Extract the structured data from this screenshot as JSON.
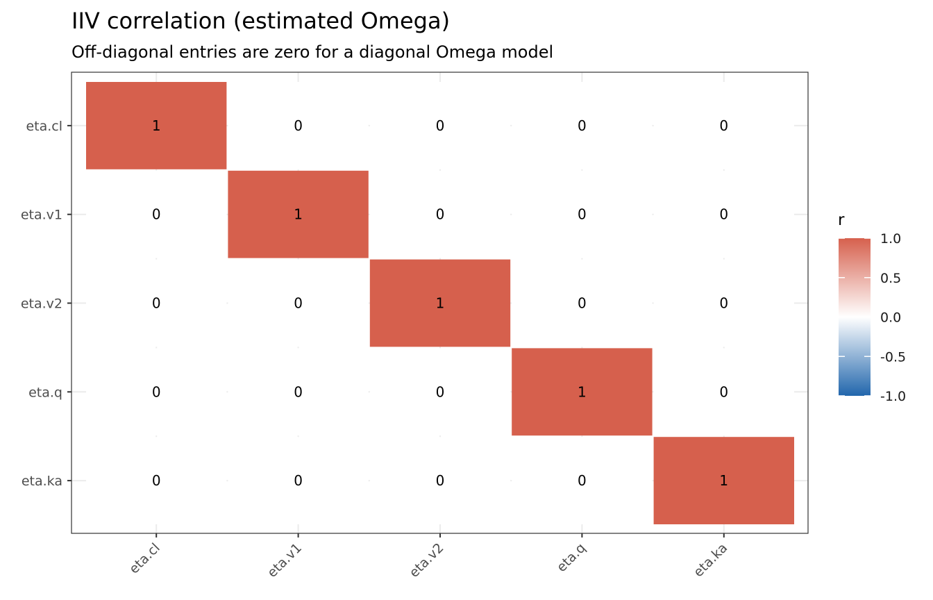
{
  "chart_data": {
    "type": "heatmap",
    "title": "IIV correlation (estimated Omega)",
    "subtitle": "Off-diagonal entries are zero for a diagonal Omega model",
    "x_categories": [
      "eta.cl",
      "eta.v1",
      "eta.v2",
      "eta.q",
      "eta.ka"
    ],
    "y_categories": [
      "eta.cl",
      "eta.v1",
      "eta.v2",
      "eta.q",
      "eta.ka"
    ],
    "values": [
      [
        1,
        0,
        0,
        0,
        0
      ],
      [
        0,
        1,
        0,
        0,
        0
      ],
      [
        0,
        0,
        1,
        0,
        0
      ],
      [
        0,
        0,
        0,
        1,
        0
      ],
      [
        0,
        0,
        0,
        0,
        1
      ]
    ],
    "cell_labels": [
      [
        "1",
        "0",
        "0",
        "0",
        "0"
      ],
      [
        "0",
        "1",
        "0",
        "0",
        "0"
      ],
      [
        "0",
        "0",
        "1",
        "0",
        "0"
      ],
      [
        "0",
        "0",
        "0",
        "1",
        "0"
      ],
      [
        "0",
        "0",
        "0",
        "0",
        "1"
      ]
    ],
    "legend": {
      "title": "r",
      "placement": "right",
      "ticks": [
        "1.0",
        "0.5",
        "0.0",
        "-0.5",
        "-1.0"
      ],
      "tick_values": [
        1.0,
        0.5,
        0.0,
        -0.5,
        -1.0
      ],
      "range": [
        -1.0,
        1.0
      ]
    },
    "colors": {
      "high": "#d6604d",
      "mid": "#ffffff",
      "low": "#2166ac",
      "grid": "#ebebeb",
      "panel_border": "#333333"
    },
    "grid": true
  }
}
